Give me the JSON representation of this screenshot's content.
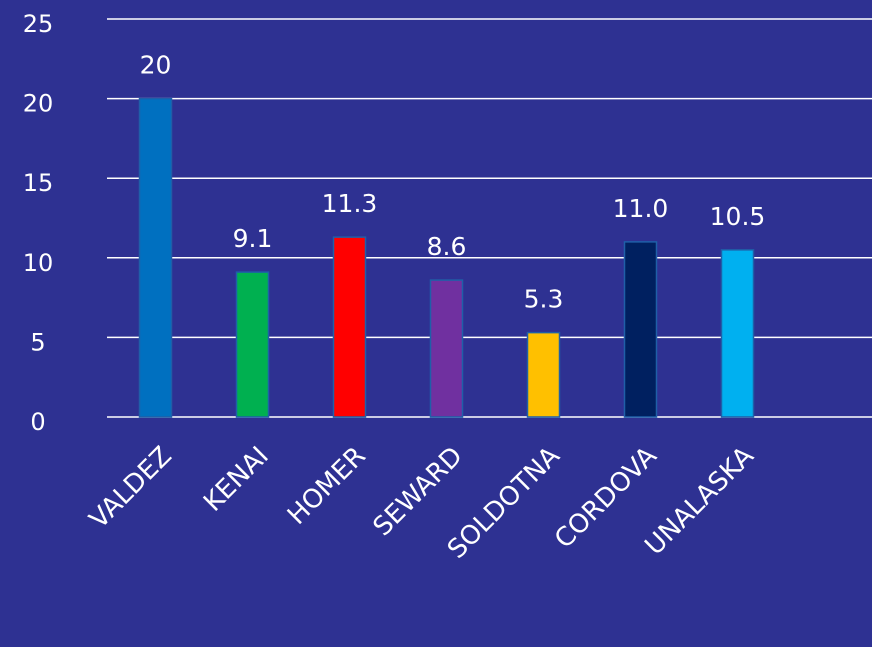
{
  "chart_data": {
    "type": "bar",
    "categories": [
      "VALDEZ",
      "KENAI",
      "HOMER",
      "SEWARD",
      "SOLDOTNA",
      "CORDOVA",
      "UNALASKA"
    ],
    "values": [
      20,
      9.1,
      11.3,
      8.6,
      5.3,
      11,
      10.5
    ],
    "value_labels": [
      "20",
      "9.1",
      "11.3",
      "8.6",
      "5.3",
      "11.0",
      "10.5"
    ],
    "colors": [
      "#0070c0",
      "#00b050",
      "#ff0000",
      "#7030a0",
      "#ffc000",
      "#002060",
      "#00b0f0"
    ],
    "ylim": [
      0,
      25
    ],
    "yticks": [
      0,
      5,
      10,
      15,
      20,
      25
    ],
    "grid": true
  }
}
